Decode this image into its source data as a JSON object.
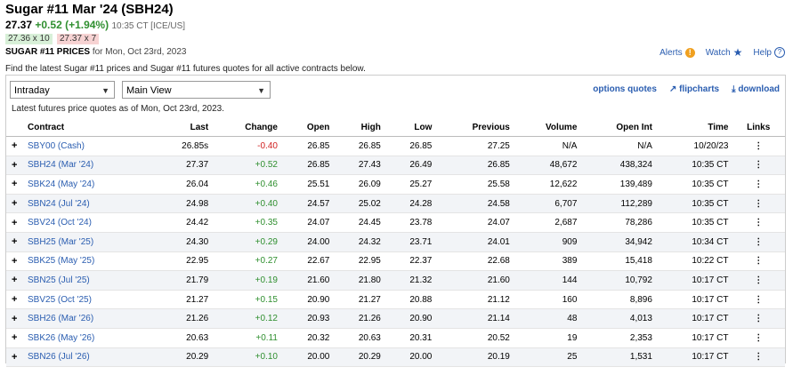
{
  "header": {
    "title": "Sugar #11 Mar '24 (SBH24)",
    "price": "27.37",
    "change": "+0.52 (+1.94%)",
    "time": "10:35 CT [ICE/US]",
    "bid": "27.36 x 10",
    "ask": "27.37 x 7",
    "prices_label": "SUGAR #11 PRICES",
    "prices_date": "for Mon, Oct 23rd, 2023"
  },
  "top_links": {
    "alerts": "Alerts",
    "watch": "Watch",
    "help": "Help"
  },
  "intro": "Find the latest Sugar #11 prices and Sugar #11 futures quotes for all active contracts below.",
  "controls": {
    "period": "Intraday",
    "view": "Main View",
    "options_quotes": "options quotes",
    "flipcharts": "flipcharts",
    "download": "download",
    "as_of": "Latest futures price quotes as of Mon, Oct 23rd, 2023."
  },
  "table": {
    "headers": [
      "Contract",
      "Last",
      "Change",
      "Open",
      "High",
      "Low",
      "Previous",
      "Volume",
      "Open Int",
      "Time",
      "Links"
    ],
    "rows": [
      {
        "contract": "SBY00 (Cash)",
        "last": "26.85s",
        "change": "-0.40",
        "open": "26.85",
        "high": "26.85",
        "low": "26.85",
        "prev": "27.25",
        "vol": "N/A",
        "oi": "N/A",
        "time": "10/20/23"
      },
      {
        "contract": "SBH24 (Mar '24)",
        "last": "27.37",
        "change": "+0.52",
        "open": "26.85",
        "high": "27.43",
        "low": "26.49",
        "prev": "26.85",
        "vol": "48,672",
        "oi": "438,324",
        "time": "10:35 CT"
      },
      {
        "contract": "SBK24 (May '24)",
        "last": "26.04",
        "change": "+0.46",
        "open": "25.51",
        "high": "26.09",
        "low": "25.27",
        "prev": "25.58",
        "vol": "12,622",
        "oi": "139,489",
        "time": "10:35 CT"
      },
      {
        "contract": "SBN24 (Jul '24)",
        "last": "24.98",
        "change": "+0.40",
        "open": "24.57",
        "high": "25.02",
        "low": "24.28",
        "prev": "24.58",
        "vol": "6,707",
        "oi": "112,289",
        "time": "10:35 CT"
      },
      {
        "contract": "SBV24 (Oct '24)",
        "last": "24.42",
        "change": "+0.35",
        "open": "24.07",
        "high": "24.45",
        "low": "23.78",
        "prev": "24.07",
        "vol": "2,687",
        "oi": "78,286",
        "time": "10:35 CT"
      },
      {
        "contract": "SBH25 (Mar '25)",
        "last": "24.30",
        "change": "+0.29",
        "open": "24.00",
        "high": "24.32",
        "low": "23.71",
        "prev": "24.01",
        "vol": "909",
        "oi": "34,942",
        "time": "10:34 CT"
      },
      {
        "contract": "SBK25 (May '25)",
        "last": "22.95",
        "change": "+0.27",
        "open": "22.67",
        "high": "22.95",
        "low": "22.37",
        "prev": "22.68",
        "vol": "389",
        "oi": "15,418",
        "time": "10:22 CT"
      },
      {
        "contract": "SBN25 (Jul '25)",
        "last": "21.79",
        "change": "+0.19",
        "open": "21.60",
        "high": "21.80",
        "low": "21.32",
        "prev": "21.60",
        "vol": "144",
        "oi": "10,792",
        "time": "10:17 CT"
      },
      {
        "contract": "SBV25 (Oct '25)",
        "last": "21.27",
        "change": "+0.15",
        "open": "20.90",
        "high": "21.27",
        "low": "20.88",
        "prev": "21.12",
        "vol": "160",
        "oi": "8,896",
        "time": "10:17 CT"
      },
      {
        "contract": "SBH26 (Mar '26)",
        "last": "21.26",
        "change": "+0.12",
        "open": "20.93",
        "high": "21.26",
        "low": "20.90",
        "prev": "21.14",
        "vol": "48",
        "oi": "4,013",
        "time": "10:17 CT"
      },
      {
        "contract": "SBK26 (May '26)",
        "last": "20.63",
        "change": "+0.11",
        "open": "20.32",
        "high": "20.63",
        "low": "20.31",
        "prev": "20.52",
        "vol": "19",
        "oi": "2,353",
        "time": "10:17 CT"
      },
      {
        "contract": "SBN26 (Jul '26)",
        "last": "20.29",
        "change": "+0.10",
        "open": "20.00",
        "high": "20.29",
        "low": "20.00",
        "prev": "20.19",
        "vol": "25",
        "oi": "1,531",
        "time": "10:17 CT"
      }
    ]
  }
}
